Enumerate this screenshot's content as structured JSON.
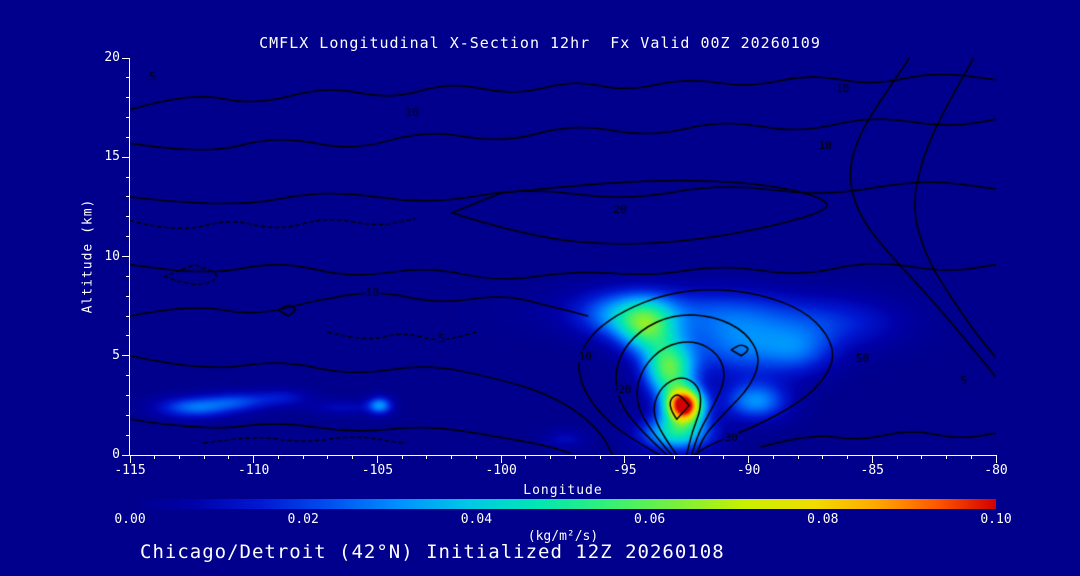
{
  "chart_data": {
    "type": "heatmap",
    "title": "CMFLX Longitudinal X-Section 12hr  Fx Valid 00Z 20260109",
    "footer": "Chicago/Detroit (42°N) Initialized 12Z 20260108",
    "xlabel": "Longitude",
    "ylabel": "Altitude (km)",
    "xlim": [
      -115,
      -80
    ],
    "ylim": [
      0,
      20
    ],
    "x_ticks": [
      -115,
      -110,
      -105,
      -100,
      -95,
      -90,
      -85,
      -80
    ],
    "y_ticks": [
      0,
      5,
      10,
      15,
      20
    ],
    "background_color": "#00008c",
    "text_color": "#ffffff",
    "contour_color": "#000000",
    "colorbar": {
      "min": 0.0,
      "max": 0.1,
      "ticks": [
        0.0,
        0.02,
        0.04,
        0.06,
        0.08,
        0.1
      ],
      "tick_labels": [
        "0.00",
        "0.02",
        "0.04",
        "0.06",
        "0.08",
        "0.10"
      ],
      "units": "(kg/m²/s)",
      "stops": [
        [
          0.0,
          "#00008c"
        ],
        [
          0.07,
          "#0000a8"
        ],
        [
          0.15,
          "#0018d2"
        ],
        [
          0.23,
          "#0050f0"
        ],
        [
          0.31,
          "#0090ff"
        ],
        [
          0.39,
          "#00c8e6"
        ],
        [
          0.47,
          "#00e6b4"
        ],
        [
          0.55,
          "#32f078"
        ],
        [
          0.63,
          "#78f03c"
        ],
        [
          0.71,
          "#c8f000"
        ],
        [
          0.79,
          "#f0dc00"
        ],
        [
          0.86,
          "#ffaa00"
        ],
        [
          0.93,
          "#ff5a00"
        ],
        [
          1.0,
          "#d20000"
        ]
      ]
    },
    "field_maximum": {
      "lon": -92.6,
      "altitude_km": 2.5,
      "value": 0.1
    },
    "flux_blobs": [
      {
        "lon": -92.6,
        "alt": 2.5,
        "sx": 0.75,
        "sy": 0.85,
        "amp": 0.104
      },
      {
        "lon": -93.2,
        "alt": 4.3,
        "sx": 1.0,
        "sy": 1.4,
        "amp": 0.055
      },
      {
        "lon": -94.1,
        "alt": 6.4,
        "sx": 1.15,
        "sy": 1.35,
        "amp": 0.042
      },
      {
        "lon": -90.3,
        "alt": 5.6,
        "sx": 2.4,
        "sy": 1.7,
        "amp": 0.026
      },
      {
        "lon": -89.7,
        "alt": 2.7,
        "sx": 1.3,
        "sy": 0.95,
        "amp": 0.03
      },
      {
        "lon": -92.5,
        "alt": 7.3,
        "sx": 4.8,
        "sy": 1.25,
        "amp": 0.017
      },
      {
        "lon": -86.3,
        "alt": 6.6,
        "sx": 2.6,
        "sy": 1.3,
        "amp": 0.014
      },
      {
        "lon": -87.9,
        "alt": 5.2,
        "sx": 1.5,
        "sy": 1.2,
        "amp": 0.016
      },
      {
        "lon": -95.3,
        "alt": 7.0,
        "sx": 1.6,
        "sy": 1.2,
        "amp": 0.02
      },
      {
        "lon": -92.9,
        "alt": 1.1,
        "sx": 1.4,
        "sy": 0.9,
        "amp": 0.045
      },
      {
        "lon": -97.4,
        "alt": 0.8,
        "sx": 0.9,
        "sy": 0.5,
        "amp": 0.01
      },
      {
        "lon": -112.4,
        "alt": 2.4,
        "sx": 1.5,
        "sy": 0.55,
        "amp": 0.026
      },
      {
        "lon": -110.6,
        "alt": 2.7,
        "sx": 1.3,
        "sy": 0.5,
        "amp": 0.018
      },
      {
        "lon": -108.8,
        "alt": 2.9,
        "sx": 1.1,
        "sy": 0.45,
        "amp": 0.012
      },
      {
        "lon": -106.4,
        "alt": 2.4,
        "sx": 1.3,
        "sy": 0.4,
        "amp": 0.01
      },
      {
        "lon": -104.9,
        "alt": 2.5,
        "sx": 0.5,
        "sy": 0.45,
        "amp": 0.03
      }
    ],
    "contour_lines": [
      {
        "pts": [
          [
            -115,
            17.4
          ],
          [
            -112.5,
            18.3
          ],
          [
            -110,
            17.6
          ],
          [
            -107,
            18.6
          ],
          [
            -104.5,
            17.9
          ],
          [
            -102,
            18.8
          ],
          [
            -99.5,
            18.1
          ],
          [
            -97,
            18.9
          ],
          [
            -95,
            18.3
          ],
          [
            -92.5,
            19.0
          ],
          [
            -90,
            18.5
          ],
          [
            -87.5,
            19.2
          ],
          [
            -85,
            18.6
          ],
          [
            -82.5,
            19.3
          ],
          [
            -80,
            18.9
          ]
        ]
      },
      {
        "pts": [
          [
            -115,
            15.7
          ],
          [
            -112,
            15.1
          ],
          [
            -109,
            16.1
          ],
          [
            -106,
            15.3
          ],
          [
            -103,
            16.4
          ],
          [
            -100,
            15.7
          ],
          [
            -97,
            16.7
          ],
          [
            -94,
            16.0
          ],
          [
            -91,
            16.9
          ],
          [
            -88,
            16.2
          ],
          [
            -85,
            17.1
          ],
          [
            -82,
            16.5
          ],
          [
            -80,
            16.9
          ]
        ]
      },
      {
        "pts": [
          [
            -115,
            13.0
          ],
          [
            -111,
            12.4
          ],
          [
            -107,
            13.4
          ],
          [
            -103,
            12.6
          ],
          [
            -99,
            13.5
          ],
          [
            -95,
            12.8
          ],
          [
            -91,
            13.7
          ],
          [
            -87,
            13.0
          ],
          [
            -83,
            13.9
          ],
          [
            -80,
            13.4
          ]
        ]
      },
      {
        "closed": true,
        "pts": [
          [
            -102,
            12.2
          ],
          [
            -99,
            11.0
          ],
          [
            -95,
            10.5
          ],
          [
            -91,
            11.0
          ],
          [
            -87.5,
            12.0
          ],
          [
            -86.5,
            12.7
          ],
          [
            -88.5,
            13.5
          ],
          [
            -92,
            13.9
          ],
          [
            -96,
            13.7
          ],
          [
            -100,
            13.2
          ]
        ]
      },
      {
        "pts": [
          [
            -115,
            9.6
          ],
          [
            -112,
            9.0
          ],
          [
            -109,
            9.8
          ],
          [
            -106,
            8.9
          ],
          [
            -103,
            9.5
          ],
          [
            -100,
            8.7
          ],
          [
            -97,
            9.3
          ],
          [
            -94,
            9.0
          ],
          [
            -91,
            9.6
          ],
          [
            -88,
            9.0
          ],
          [
            -85,
            9.8
          ],
          [
            -82,
            9.2
          ],
          [
            -80,
            9.6
          ]
        ]
      },
      {
        "pts": [
          [
            -115,
            7.0
          ],
          [
            -112.5,
            7.6
          ],
          [
            -110,
            7.0
          ],
          [
            -107.5,
            7.8
          ],
          [
            -105,
            8.3
          ],
          [
            -102.5,
            7.6
          ],
          [
            -100,
            8.1
          ],
          [
            -98,
            7.5
          ],
          [
            -96.5,
            7.0
          ]
        ]
      },
      {
        "pts": [
          [
            -93.6,
            0
          ],
          [
            -95.0,
            1.0
          ],
          [
            -96.1,
            2.2
          ],
          [
            -96.8,
            3.6
          ],
          [
            -96.9,
            5.0
          ],
          [
            -96.2,
            6.3
          ],
          [
            -95.0,
            7.3
          ],
          [
            -93.4,
            8.1
          ],
          [
            -91.5,
            8.4
          ],
          [
            -89.5,
            8.1
          ],
          [
            -87.8,
            7.3
          ],
          [
            -86.8,
            6.1
          ],
          [
            -86.5,
            4.8
          ],
          [
            -87.2,
            3.4
          ],
          [
            -88.5,
            2.2
          ],
          [
            -90.2,
            1.2
          ],
          [
            -91.6,
            0.5
          ],
          [
            -92.2,
            0
          ]
        ]
      },
      {
        "pts": [
          [
            -93.3,
            0
          ],
          [
            -94.7,
            1.6
          ],
          [
            -95.4,
            3.2
          ],
          [
            -95.3,
            4.9
          ],
          [
            -94.4,
            6.3
          ],
          [
            -93.0,
            7.1
          ],
          [
            -91.4,
            7.0
          ],
          [
            -90.1,
            6.2
          ],
          [
            -89.5,
            4.9
          ],
          [
            -89.9,
            3.5
          ],
          [
            -90.9,
            2.2
          ],
          [
            -91.8,
            1.0
          ],
          [
            -92.1,
            0
          ]
        ]
      },
      {
        "pts": [
          [
            -93.1,
            0
          ],
          [
            -94.1,
            1.4
          ],
          [
            -94.6,
            2.9
          ],
          [
            -94.3,
            4.4
          ],
          [
            -93.4,
            5.5
          ],
          [
            -92.2,
            5.8
          ],
          [
            -91.2,
            5.1
          ],
          [
            -90.9,
            3.9
          ],
          [
            -91.4,
            2.5
          ],
          [
            -92.0,
            1.2
          ],
          [
            -92.3,
            0
          ]
        ]
      },
      {
        "pts": [
          [
            -92.9,
            0
          ],
          [
            -93.6,
            1.2
          ],
          [
            -93.9,
            2.4
          ],
          [
            -93.5,
            3.5
          ],
          [
            -92.7,
            4.0
          ],
          [
            -92.0,
            3.5
          ],
          [
            -91.9,
            2.4
          ],
          [
            -92.3,
            1.1
          ],
          [
            -92.5,
            0
          ]
        ]
      },
      {
        "closed": true,
        "pts": [
          [
            -92.9,
            1.8
          ],
          [
            -93.3,
            2.5
          ],
          [
            -92.9,
            3.2
          ],
          [
            -92.4,
            2.5
          ]
        ]
      },
      {
        "pts": [
          [
            -83.5,
            20
          ],
          [
            -84.6,
            18
          ],
          [
            -85.6,
            16
          ],
          [
            -86.0,
            14
          ],
          [
            -85.5,
            12
          ],
          [
            -84.5,
            10.4
          ],
          [
            -83.4,
            8.9
          ],
          [
            -82.3,
            7.4
          ],
          [
            -81.3,
            5.9
          ],
          [
            -80.3,
            4.4
          ],
          [
            -80,
            3.9
          ]
        ]
      },
      {
        "pts": [
          [
            -80.9,
            20
          ],
          [
            -82.1,
            17.4
          ],
          [
            -83.0,
            14.9
          ],
          [
            -83.4,
            12.4
          ],
          [
            -82.8,
            9.9
          ],
          [
            -81.8,
            7.9
          ],
          [
            -80.8,
            6.1
          ],
          [
            -80,
            4.9
          ]
        ]
      },
      {
        "pts": [
          [
            -115,
            5.0
          ],
          [
            -112,
            4.2
          ],
          [
            -109,
            4.8
          ],
          [
            -106,
            4.0
          ],
          [
            -103,
            4.6
          ],
          [
            -100,
            3.8
          ],
          [
            -98.2,
            3.1
          ],
          [
            -96.8,
            2.1
          ],
          [
            -95.9,
            1.0
          ],
          [
            -95.5,
            0
          ]
        ]
      },
      {
        "pts": [
          [
            -115,
            1.8
          ],
          [
            -112,
            1.2
          ],
          [
            -109,
            1.7
          ],
          [
            -106,
            1.1
          ],
          [
            -103,
            1.5
          ],
          [
            -100,
            0.9
          ],
          [
            -98.3,
            0.5
          ],
          [
            -97.2,
            0.1
          ]
        ]
      },
      {
        "pts": [
          [
            -89.5,
            0.4
          ],
          [
            -87.5,
            1.1
          ],
          [
            -85.5,
            0.7
          ],
          [
            -83.5,
            1.3
          ],
          [
            -81.5,
            0.8
          ],
          [
            -80,
            1.1
          ]
        ]
      },
      {
        "closed": true,
        "pts": [
          [
            -108.6,
            7.0
          ],
          [
            -108.2,
            7.3
          ],
          [
            -108.6,
            7.6
          ],
          [
            -109.0,
            7.3
          ]
        ]
      },
      {
        "closed": true,
        "pts": [
          [
            -90.3,
            5.0
          ],
          [
            -89.9,
            5.3
          ],
          [
            -90.3,
            5.6
          ],
          [
            -90.7,
            5.3
          ]
        ]
      },
      {
        "dash": true,
        "pts": [
          [
            -115,
            11.8
          ],
          [
            -113,
            11.2
          ],
          [
            -111,
            11.9
          ],
          [
            -109,
            11.3
          ],
          [
            -107,
            12.0
          ],
          [
            -105,
            11.5
          ],
          [
            -103.5,
            11.9
          ]
        ]
      },
      {
        "dash": true,
        "closed": true,
        "pts": [
          [
            -113.6,
            9.0
          ],
          [
            -112.4,
            8.4
          ],
          [
            -111.2,
            9.0
          ],
          [
            -112.4,
            9.6
          ]
        ]
      },
      {
        "dash": true,
        "pts": [
          [
            -107,
            6.2
          ],
          [
            -105.5,
            5.7
          ],
          [
            -104,
            6.2
          ],
          [
            -102.5,
            5.7
          ],
          [
            -101,
            6.2
          ]
        ]
      },
      {
        "dash": true,
        "pts": [
          [
            -112,
            0.6
          ],
          [
            -110,
            1.0
          ],
          [
            -108,
            0.6
          ],
          [
            -106,
            1.0
          ],
          [
            -104,
            0.6
          ]
        ]
      }
    ],
    "contour_labels": [
      {
        "t": "5",
        "lon": -114.1,
        "alt": 19.1
      },
      {
        "t": "10",
        "lon": -103.6,
        "alt": 17.3
      },
      {
        "t": "10",
        "lon": -86.9,
        "alt": 15.6
      },
      {
        "t": "10",
        "lon": -86.2,
        "alt": 18.5
      },
      {
        "t": "20",
        "lon": -95.2,
        "alt": 12.4
      },
      {
        "t": "10",
        "lon": -105.2,
        "alt": 8.2
      },
      {
        "t": "5",
        "lon": -102.4,
        "alt": 5.9
      },
      {
        "t": "10",
        "lon": -96.6,
        "alt": 5.0
      },
      {
        "t": "20",
        "lon": -95.0,
        "alt": 3.3
      },
      {
        "t": "30",
        "lon": -90.7,
        "alt": 0.9
      },
      {
        "t": "50",
        "lon": -85.4,
        "alt": 4.9
      },
      {
        "t": "5",
        "lon": -81.3,
        "alt": 3.8
      }
    ]
  }
}
